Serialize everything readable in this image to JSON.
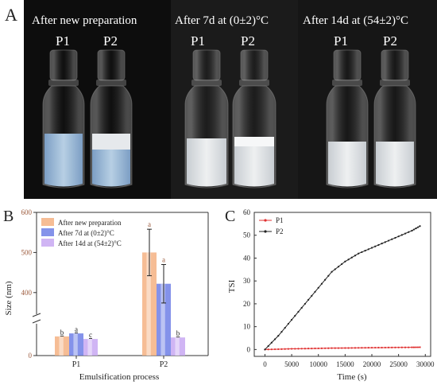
{
  "panel_a": {
    "letter": "A",
    "groups": [
      {
        "caption": "After new preparation",
        "vials": [
          "P1",
          "P2"
        ]
      },
      {
        "caption": "After 7d  at (0±2)°C",
        "vials": [
          "P1",
          "P2"
        ]
      },
      {
        "caption": "After 14d  at (54±2)°C",
        "vials": [
          "P1",
          "P2"
        ]
      }
    ]
  },
  "chart_data": [
    {
      "panel": "B",
      "type": "bar",
      "categories": [
        "P1",
        "P2"
      ],
      "series": [
        {
          "name": "After new preparation",
          "values": [
            38,
            500
          ],
          "letters": [
            "b",
            "a"
          ],
          "errors": [
            0,
            58
          ]
        },
        {
          "name": "After 7d at (0±2)°C",
          "values": [
            44,
            422
          ],
          "letters": [
            "a",
            "a"
          ],
          "errors": [
            0,
            48
          ]
        },
        {
          "name": "After 14d at (54±2)°C",
          "values": [
            33,
            36
          ],
          "letters": [
            "c",
            "b"
          ],
          "errors": [
            0,
            0
          ]
        }
      ],
      "xlabel": "Emulsification process",
      "ylabel": "Size (nm)",
      "yticks": [
        "0",
        "400",
        "500",
        "600"
      ],
      "axis_break": true,
      "colors": [
        "#f4b183",
        "#6f7fe6",
        "#c8a8f2"
      ],
      "legend_position": "top-left"
    },
    {
      "panel": "C",
      "type": "line",
      "series": [
        {
          "name": "P1",
          "color": "#e03030",
          "x": [
            0,
            2500,
            5000,
            7500,
            10000,
            12500,
            15000,
            17500,
            20000,
            22500,
            25000,
            27500,
            29000
          ],
          "y": [
            0,
            0.15,
            0.3,
            0.4,
            0.5,
            0.6,
            0.65,
            0.72,
            0.8,
            0.85,
            0.9,
            0.95,
            1.0
          ]
        },
        {
          "name": "P2",
          "color": "#222222",
          "x": [
            0,
            2500,
            5000,
            7500,
            10000,
            12500,
            15000,
            17500,
            20000,
            22500,
            25000,
            27500,
            29000
          ],
          "y": [
            0,
            6,
            13,
            20,
            27,
            34,
            38.5,
            42,
            44.5,
            47,
            49.5,
            52,
            54
          ]
        }
      ],
      "xlabel": "Time (s)",
      "ylabel": "TSI",
      "xticks": [
        0,
        5000,
        10000,
        15000,
        20000,
        25000,
        30000
      ],
      "yticks": [
        0,
        10,
        20,
        30,
        40,
        50,
        60
      ],
      "xlim": [
        -2000,
        31000
      ],
      "ylim": [
        -3,
        60
      ],
      "legend_position": "top-left"
    }
  ]
}
